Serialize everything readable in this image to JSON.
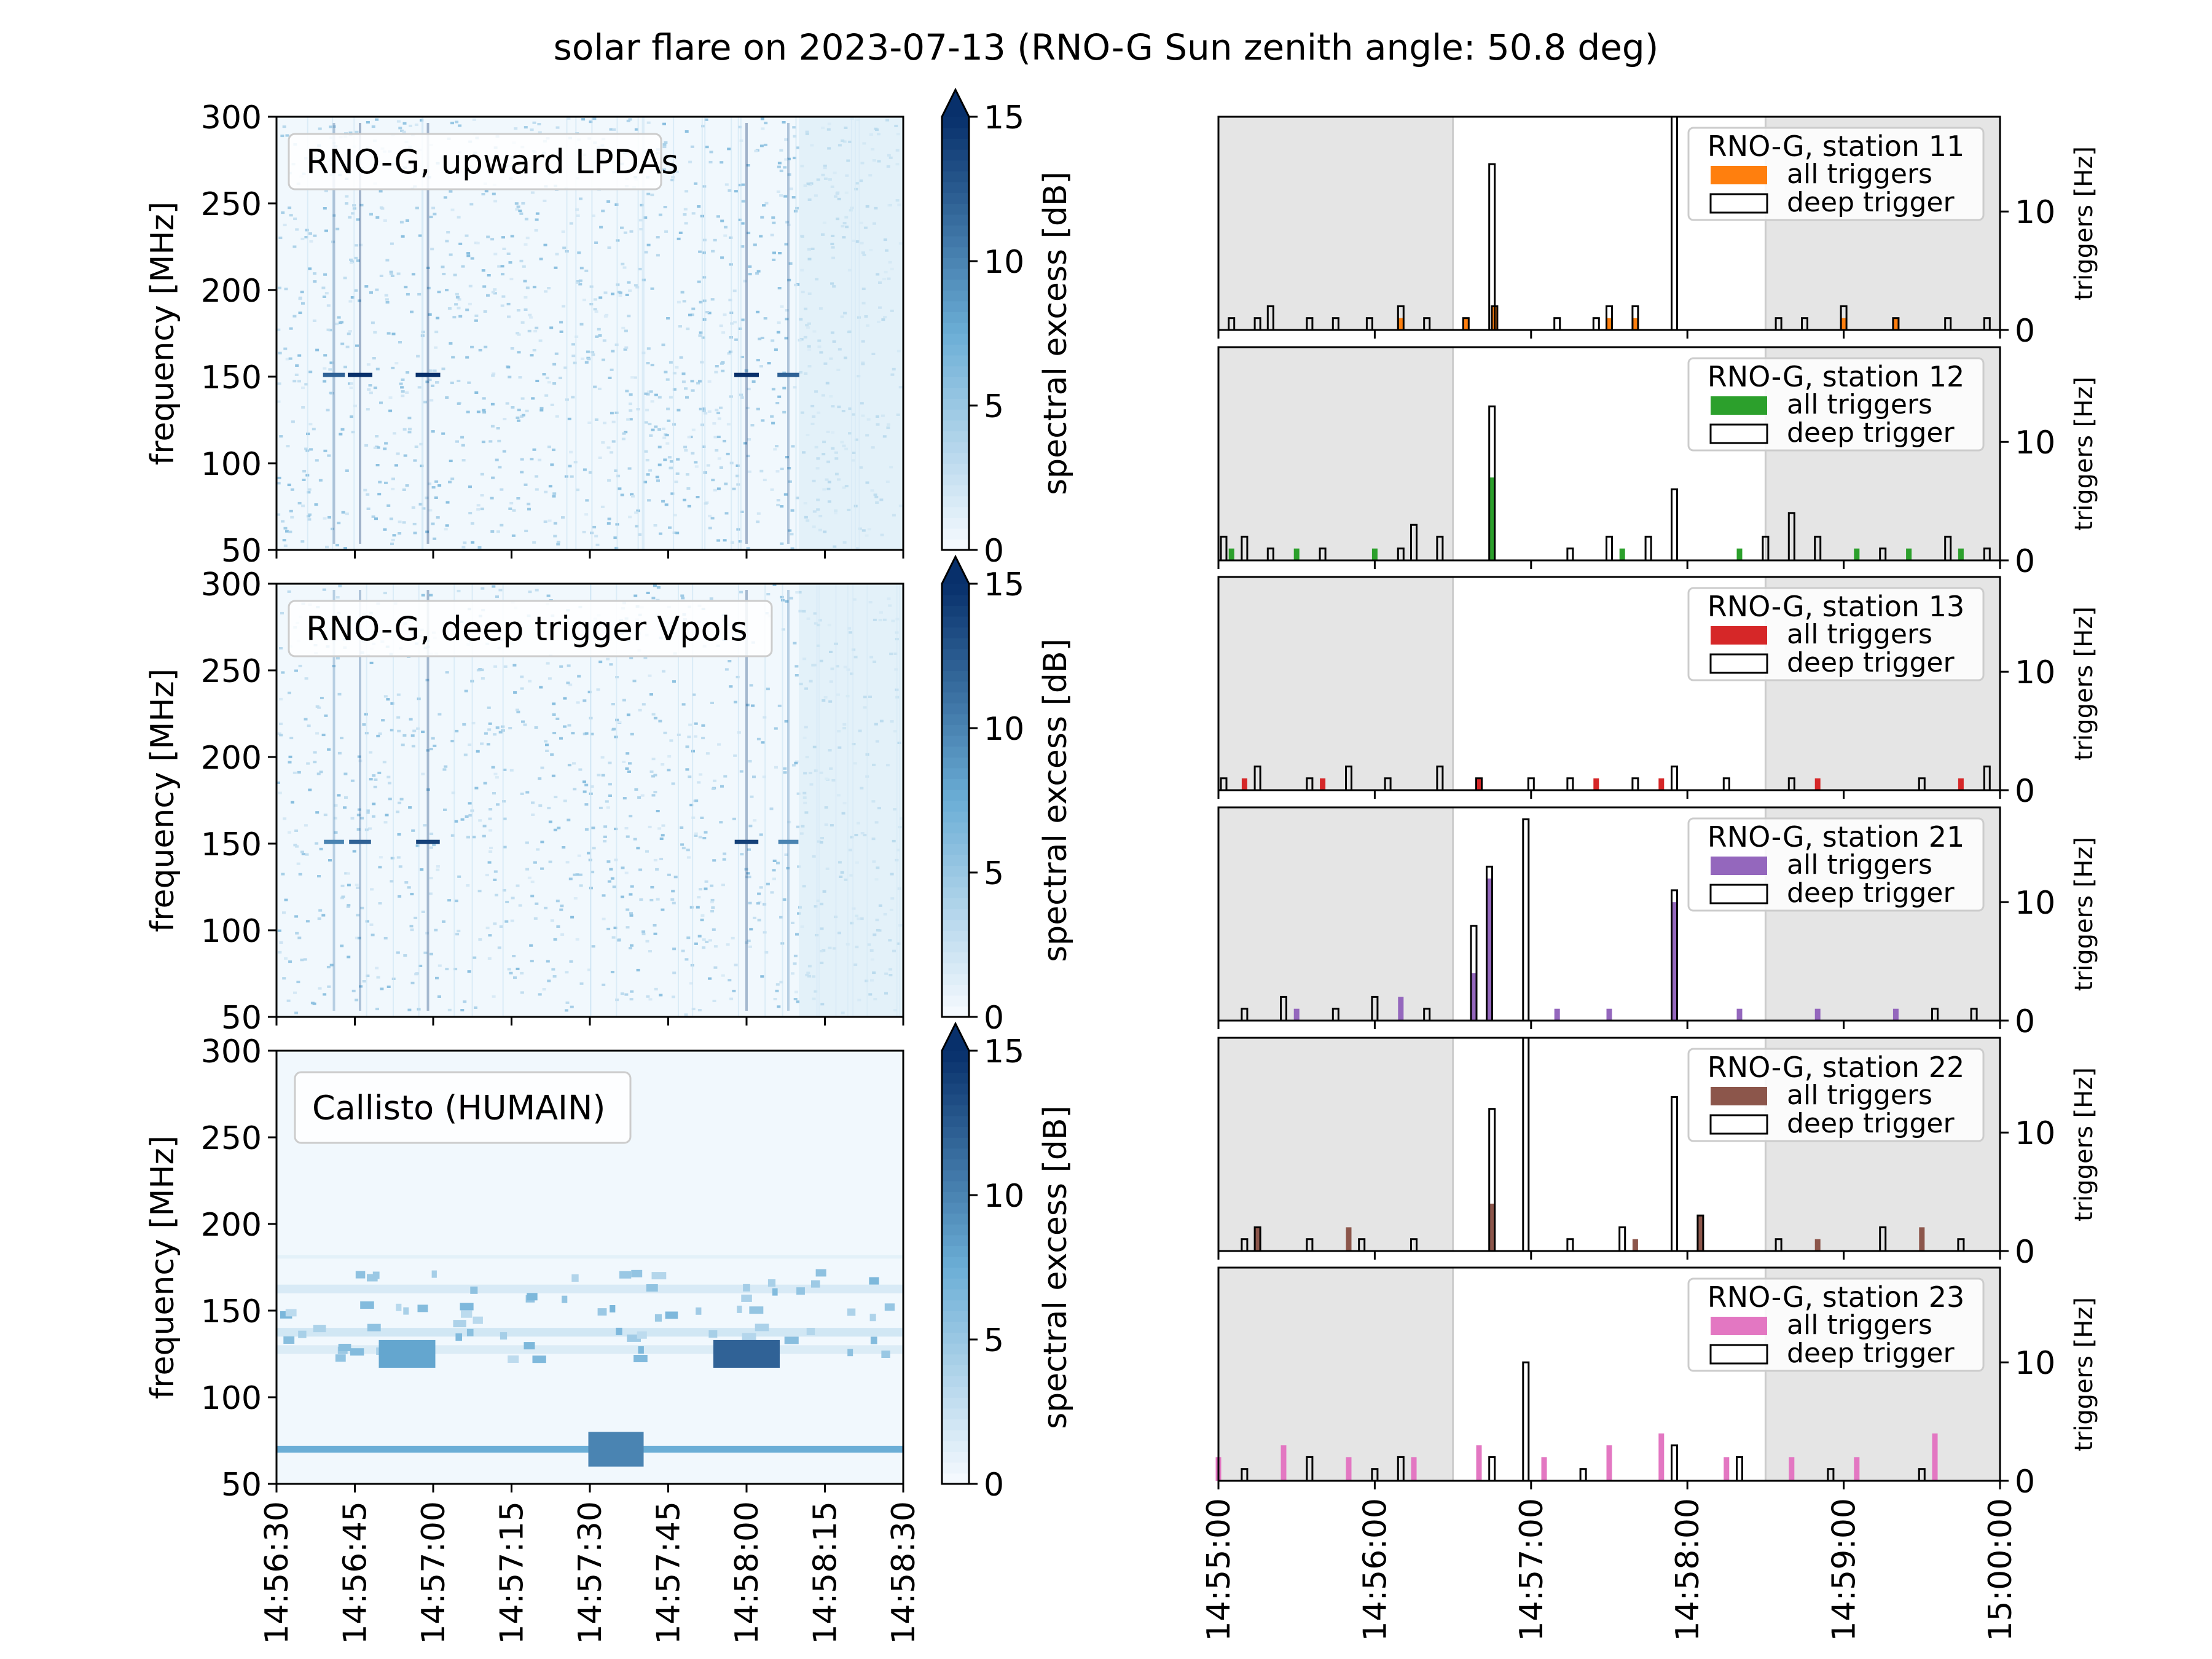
{
  "figure": {
    "title": "solar flare on 2023-07-13 (RNO-G Sun zenith angle: 50.8 deg)"
  },
  "colorbar": {
    "label": "spectral excess [dB]",
    "ticks": [
      "0",
      "5",
      "10",
      "15"
    ],
    "extend": "max",
    "colormap": "Blues"
  },
  "colors": {
    "station_11": "#ff7f0e",
    "station_12": "#2ca02c",
    "station_13": "#d62728",
    "station_21": "#9467bd",
    "station_22": "#8c564b",
    "station_23": "#e377c2",
    "shade": "#e5e5e5",
    "deep_trigger": "#000000"
  },
  "chart_data": [
    {
      "type": "heatmap",
      "label": "RNO-G, upward LPDAs",
      "ylabel": "frequency [MHz]",
      "ylim": [
        50,
        300
      ],
      "yticks": [
        "50",
        "100",
        "150",
        "200",
        "250",
        "300"
      ],
      "xlim": [
        "14:56:30",
        "14:58:30"
      ],
      "xticks": [],
      "color_range": [
        0,
        15
      ],
      "features": [
        {
          "time": "14:56:41",
          "freq": 151,
          "excess": 12
        },
        {
          "time": "14:56:46",
          "freq": 151,
          "excess": 15
        },
        {
          "time": "14:56:59",
          "freq": 151,
          "excess": 15
        },
        {
          "time": "14:58:00",
          "freq": 151,
          "excess": 15
        },
        {
          "time": "14:58:08",
          "freq": 151,
          "excess": 12
        }
      ]
    },
    {
      "type": "heatmap",
      "label": "RNO-G, deep trigger Vpols",
      "ylabel": "frequency [MHz]",
      "ylim": [
        50,
        300
      ],
      "yticks": [
        "50",
        "100",
        "150",
        "200",
        "250",
        "300"
      ],
      "xlim": [
        "14:56:30",
        "14:58:30"
      ],
      "xticks": [],
      "color_range": [
        0,
        15
      ],
      "features": [
        {
          "time": "14:56:41",
          "freq": 151,
          "excess": 10
        },
        {
          "time": "14:56:46",
          "freq": 151,
          "excess": 12
        },
        {
          "time": "14:56:59",
          "freq": 151,
          "excess": 14
        },
        {
          "time": "14:58:00",
          "freq": 151,
          "excess": 14
        },
        {
          "time": "14:58:08",
          "freq": 151,
          "excess": 10
        }
      ]
    },
    {
      "type": "heatmap",
      "label": "Callisto (HUMAIN)",
      "ylabel": "frequency [MHz]",
      "ylim": [
        50,
        300
      ],
      "yticks": [
        "50",
        "100",
        "150",
        "200",
        "250",
        "300"
      ],
      "xlim": [
        "14:56:30",
        "14:58:30"
      ],
      "xticks": [
        "14:56:30",
        "14:56:45",
        "14:57:00",
        "14:57:15",
        "14:57:30",
        "14:57:45",
        "14:58:00",
        "14:58:15",
        "14:58:30"
      ],
      "color_range": [
        0,
        15
      ],
      "features": [
        {
          "time": "14:56:55",
          "freq": 125,
          "excess": 8
        },
        {
          "time": "14:58:00",
          "freq": 125,
          "excess": 12
        },
        {
          "time": "14:57:35",
          "freq": 70,
          "excess": 10
        }
      ]
    },
    {
      "type": "bar",
      "label": "RNO-G, station 11",
      "legend": [
        "all triggers",
        "deep trigger"
      ],
      "ylabel": "triggers [Hz]",
      "ylim": [
        0,
        18
      ],
      "yticks": [
        "0",
        "10"
      ],
      "xlim": [
        "14:55:00",
        "15:00:00"
      ],
      "xticks": [],
      "shaded": [
        [
          "14:55:00",
          "14:56:30"
        ],
        [
          "14:58:30",
          "15:00:00"
        ]
      ],
      "deep_trigger": [
        {
          "t": "14:55:05",
          "v": 1
        },
        {
          "t": "14:55:15",
          "v": 1
        },
        {
          "t": "14:55:20",
          "v": 2
        },
        {
          "t": "14:55:35",
          "v": 1
        },
        {
          "t": "14:55:45",
          "v": 1
        },
        {
          "t": "14:55:58",
          "v": 1
        },
        {
          "t": "14:56:10",
          "v": 2
        },
        {
          "t": "14:56:20",
          "v": 1
        },
        {
          "t": "14:56:35",
          "v": 1
        },
        {
          "t": "14:56:45",
          "v": 14
        },
        {
          "t": "14:56:46",
          "v": 2
        },
        {
          "t": "14:57:10",
          "v": 1
        },
        {
          "t": "14:57:25",
          "v": 1
        },
        {
          "t": "14:57:30",
          "v": 2
        },
        {
          "t": "14:57:40",
          "v": 2
        },
        {
          "t": "14:57:55",
          "v": 18
        },
        {
          "t": "14:58:35",
          "v": 1
        },
        {
          "t": "14:58:45",
          "v": 1
        },
        {
          "t": "14:59:00",
          "v": 2
        },
        {
          "t": "14:59:20",
          "v": 1
        },
        {
          "t": "14:59:40",
          "v": 1
        },
        {
          "t": "14:59:55",
          "v": 1
        }
      ],
      "all_triggers": [
        {
          "t": "14:56:10",
          "v": 1
        },
        {
          "t": "14:56:35",
          "v": 1
        },
        {
          "t": "14:56:46",
          "v": 2
        },
        {
          "t": "14:57:30",
          "v": 1
        },
        {
          "t": "14:57:40",
          "v": 1
        },
        {
          "t": "14:59:00",
          "v": 1
        },
        {
          "t": "14:59:20",
          "v": 1
        }
      ]
    },
    {
      "type": "bar",
      "label": "RNO-G, station 12",
      "legend": [
        "all triggers",
        "deep trigger"
      ],
      "ylabel": "triggers [Hz]",
      "ylim": [
        0,
        18
      ],
      "yticks": [
        "0",
        "10"
      ],
      "xlim": [
        "14:55:00",
        "15:00:00"
      ],
      "xticks": [],
      "shaded": [
        [
          "14:55:00",
          "14:56:30"
        ],
        [
          "14:58:30",
          "15:00:00"
        ]
      ],
      "deep_trigger": [
        {
          "t": "14:55:02",
          "v": 2
        },
        {
          "t": "14:55:10",
          "v": 2
        },
        {
          "t": "14:55:20",
          "v": 1
        },
        {
          "t": "14:55:40",
          "v": 1
        },
        {
          "t": "14:56:10",
          "v": 1
        },
        {
          "t": "14:56:15",
          "v": 3
        },
        {
          "t": "14:56:25",
          "v": 2
        },
        {
          "t": "14:56:45",
          "v": 13
        },
        {
          "t": "14:57:15",
          "v": 1
        },
        {
          "t": "14:57:30",
          "v": 2
        },
        {
          "t": "14:57:45",
          "v": 2
        },
        {
          "t": "14:57:55",
          "v": 6
        },
        {
          "t": "14:58:30",
          "v": 2
        },
        {
          "t": "14:58:40",
          "v": 4
        },
        {
          "t": "14:58:50",
          "v": 2
        },
        {
          "t": "14:59:15",
          "v": 1
        },
        {
          "t": "14:59:40",
          "v": 2
        },
        {
          "t": "14:59:55",
          "v": 1
        }
      ],
      "all_triggers": [
        {
          "t": "14:55:05",
          "v": 1
        },
        {
          "t": "14:55:30",
          "v": 1
        },
        {
          "t": "14:56:00",
          "v": 1
        },
        {
          "t": "14:56:45",
          "v": 7
        },
        {
          "t": "14:57:35",
          "v": 1
        },
        {
          "t": "14:58:20",
          "v": 1
        },
        {
          "t": "14:59:05",
          "v": 1
        },
        {
          "t": "14:59:25",
          "v": 1
        },
        {
          "t": "14:59:45",
          "v": 1
        }
      ]
    },
    {
      "type": "bar",
      "label": "RNO-G, station 13",
      "legend": [
        "all triggers",
        "deep trigger"
      ],
      "ylabel": "triggers [Hz]",
      "ylim": [
        0,
        18
      ],
      "yticks": [
        "0",
        "10"
      ],
      "xlim": [
        "14:55:00",
        "15:00:00"
      ],
      "xticks": [],
      "shaded": [
        [
          "14:55:00",
          "14:56:30"
        ],
        [
          "14:58:30",
          "15:00:00"
        ]
      ],
      "deep_trigger": [
        {
          "t": "14:55:02",
          "v": 1
        },
        {
          "t": "14:55:15",
          "v": 2
        },
        {
          "t": "14:55:35",
          "v": 1
        },
        {
          "t": "14:55:50",
          "v": 2
        },
        {
          "t": "14:56:05",
          "v": 1
        },
        {
          "t": "14:56:25",
          "v": 2
        },
        {
          "t": "14:56:40",
          "v": 1
        },
        {
          "t": "14:57:00",
          "v": 1
        },
        {
          "t": "14:57:15",
          "v": 1
        },
        {
          "t": "14:57:40",
          "v": 1
        },
        {
          "t": "14:57:55",
          "v": 2
        },
        {
          "t": "14:58:15",
          "v": 1
        },
        {
          "t": "14:58:40",
          "v": 1
        },
        {
          "t": "14:59:30",
          "v": 1
        },
        {
          "t": "14:59:55",
          "v": 2
        }
      ],
      "all_triggers": [
        {
          "t": "14:55:10",
          "v": 1
        },
        {
          "t": "14:55:40",
          "v": 1
        },
        {
          "t": "14:56:40",
          "v": 1
        },
        {
          "t": "14:57:25",
          "v": 1
        },
        {
          "t": "14:57:50",
          "v": 1
        },
        {
          "t": "14:58:50",
          "v": 1
        },
        {
          "t": "14:59:45",
          "v": 1
        }
      ]
    },
    {
      "type": "bar",
      "label": "RNO-G, station 21",
      "legend": [
        "all triggers",
        "deep trigger"
      ],
      "ylabel": "triggers [Hz]",
      "ylim": [
        0,
        18
      ],
      "yticks": [
        "0",
        "10"
      ],
      "xlim": [
        "14:55:00",
        "15:00:00"
      ],
      "xticks": [],
      "shaded": [
        [
          "14:55:00",
          "14:56:30"
        ],
        [
          "14:58:30",
          "15:00:00"
        ]
      ],
      "deep_trigger": [
        {
          "t": "14:55:10",
          "v": 1
        },
        {
          "t": "14:55:25",
          "v": 2
        },
        {
          "t": "14:55:45",
          "v": 1
        },
        {
          "t": "14:56:00",
          "v": 2
        },
        {
          "t": "14:56:20",
          "v": 1
        },
        {
          "t": "14:56:38",
          "v": 8
        },
        {
          "t": "14:56:44",
          "v": 13
        },
        {
          "t": "14:56:58",
          "v": 17
        },
        {
          "t": "14:57:55",
          "v": 11
        },
        {
          "t": "14:59:35",
          "v": 1
        },
        {
          "t": "14:59:50",
          "v": 1
        }
      ],
      "all_triggers": [
        {
          "t": "14:55:30",
          "v": 1
        },
        {
          "t": "14:56:10",
          "v": 2
        },
        {
          "t": "14:56:38",
          "v": 4
        },
        {
          "t": "14:56:44",
          "v": 12
        },
        {
          "t": "14:57:10",
          "v": 1
        },
        {
          "t": "14:57:30",
          "v": 1
        },
        {
          "t": "14:57:55",
          "v": 10
        },
        {
          "t": "14:58:20",
          "v": 1
        },
        {
          "t": "14:58:50",
          "v": 1
        },
        {
          "t": "14:59:20",
          "v": 1
        }
      ]
    },
    {
      "type": "bar",
      "label": "RNO-G, station 22",
      "legend": [
        "all triggers",
        "deep trigger"
      ],
      "ylabel": "triggers [Hz]",
      "ylim": [
        0,
        18
      ],
      "yticks": [
        "0",
        "10"
      ],
      "xlim": [
        "14:55:00",
        "15:00:00"
      ],
      "xticks": [],
      "shaded": [
        [
          "14:55:00",
          "14:56:30"
        ],
        [
          "14:58:30",
          "15:00:00"
        ]
      ],
      "deep_trigger": [
        {
          "t": "14:55:10",
          "v": 1
        },
        {
          "t": "14:55:15",
          "v": 2
        },
        {
          "t": "14:55:35",
          "v": 1
        },
        {
          "t": "14:55:55",
          "v": 1
        },
        {
          "t": "14:56:15",
          "v": 1
        },
        {
          "t": "14:56:45",
          "v": 12
        },
        {
          "t": "14:56:58",
          "v": 19
        },
        {
          "t": "14:57:15",
          "v": 1
        },
        {
          "t": "14:57:35",
          "v": 2
        },
        {
          "t": "14:57:55",
          "v": 13
        },
        {
          "t": "14:58:05",
          "v": 3
        },
        {
          "t": "14:58:35",
          "v": 1
        },
        {
          "t": "14:59:15",
          "v": 2
        },
        {
          "t": "14:59:45",
          "v": 1
        }
      ],
      "all_triggers": [
        {
          "t": "14:55:15",
          "v": 2
        },
        {
          "t": "14:55:50",
          "v": 2
        },
        {
          "t": "14:56:45",
          "v": 4
        },
        {
          "t": "14:57:40",
          "v": 1
        },
        {
          "t": "14:58:05",
          "v": 3
        },
        {
          "t": "14:58:50",
          "v": 1
        },
        {
          "t": "14:59:30",
          "v": 2
        }
      ]
    },
    {
      "type": "bar",
      "label": "RNO-G, station 23",
      "legend": [
        "all triggers",
        "deep trigger"
      ],
      "ylabel": "triggers [Hz]",
      "ylim": [
        0,
        18
      ],
      "yticks": [
        "0",
        "10"
      ],
      "xlim": [
        "14:55:00",
        "15:00:00"
      ],
      "xticks": [
        "14:55:00",
        "14:56:00",
        "14:57:00",
        "14:58:00",
        "14:59:00",
        "15:00:00"
      ],
      "shaded": [
        [
          "14:55:00",
          "14:56:30"
        ],
        [
          "14:58:30",
          "15:00:00"
        ]
      ],
      "deep_trigger": [
        {
          "t": "14:55:10",
          "v": 1
        },
        {
          "t": "14:55:35",
          "v": 2
        },
        {
          "t": "14:56:00",
          "v": 1
        },
        {
          "t": "14:56:10",
          "v": 2
        },
        {
          "t": "14:56:45",
          "v": 2
        },
        {
          "t": "14:56:58",
          "v": 10
        },
        {
          "t": "14:57:20",
          "v": 1
        },
        {
          "t": "14:57:55",
          "v": 3
        },
        {
          "t": "14:58:20",
          "v": 2
        },
        {
          "t": "14:58:55",
          "v": 1
        },
        {
          "t": "14:59:30",
          "v": 1
        }
      ],
      "all_triggers": [
        {
          "t": "14:55:00",
          "v": 2
        },
        {
          "t": "14:55:25",
          "v": 3
        },
        {
          "t": "14:55:50",
          "v": 2
        },
        {
          "t": "14:56:15",
          "v": 2
        },
        {
          "t": "14:56:40",
          "v": 3
        },
        {
          "t": "14:57:05",
          "v": 2
        },
        {
          "t": "14:57:30",
          "v": 3
        },
        {
          "t": "14:57:50",
          "v": 4
        },
        {
          "t": "14:58:15",
          "v": 2
        },
        {
          "t": "14:58:40",
          "v": 2
        },
        {
          "t": "14:59:05",
          "v": 2
        },
        {
          "t": "14:59:35",
          "v": 4
        }
      ]
    }
  ]
}
